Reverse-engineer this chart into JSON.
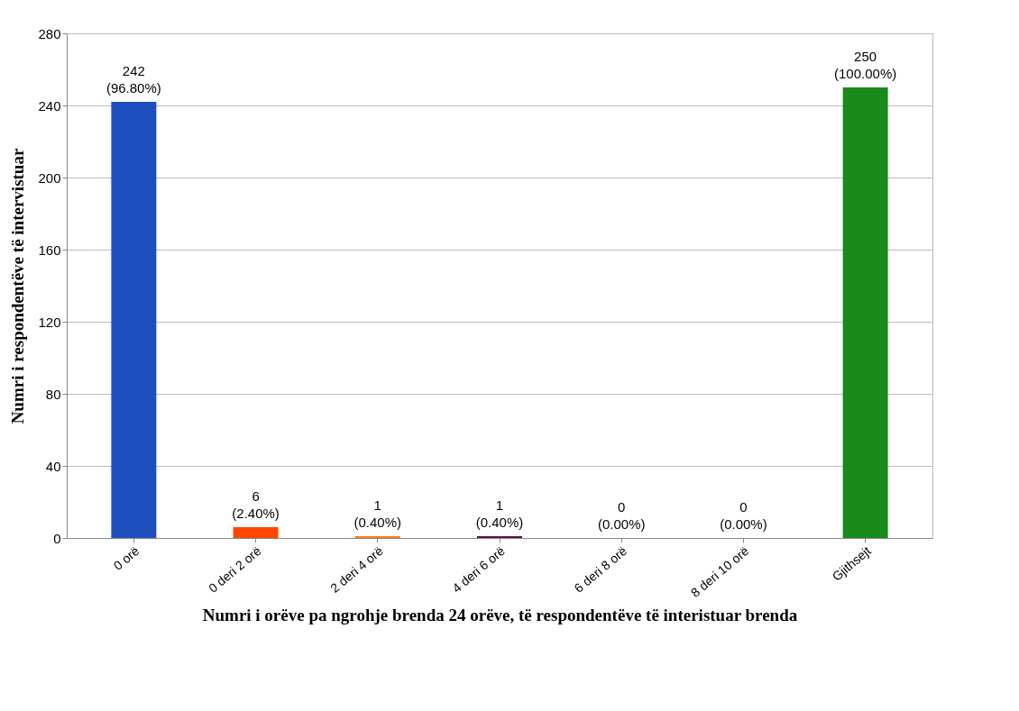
{
  "chart_data": {
    "type": "bar",
    "xlabel": "Numri i orëve pa ngrohje brenda 24 orëve, të respondentëve të interistuar brenda",
    "ylabel": "Numri i respondentëve  të intervistuar",
    "categories": [
      "0 orë",
      "0 deri 2 orë",
      "2 deri 4 orë",
      "4 deri 6 orë",
      "6 deri 8 orë",
      "8 deri 10 orë",
      "Gjithsejt"
    ],
    "values": [
      242,
      6,
      1,
      1,
      0,
      0,
      250
    ],
    "colors": [
      "#1f4fbf",
      "#ff4500",
      "#ff7f0e",
      "#5a1050",
      "#1e8fe0",
      "#c0c0c0",
      "#1a8a1a"
    ],
    "value_labels": [
      "242 (96.80%)",
      "6 (2.40%)",
      "1 (0.40%)",
      "1 (0.40%)",
      "0 (0.00%)",
      "0 (0.00%)",
      "250 (100.00%)"
    ],
    "ylim": [
      0,
      280
    ],
    "yticks": [
      0,
      40,
      80,
      120,
      160,
      200,
      240,
      280
    ],
    "grid": "y"
  }
}
